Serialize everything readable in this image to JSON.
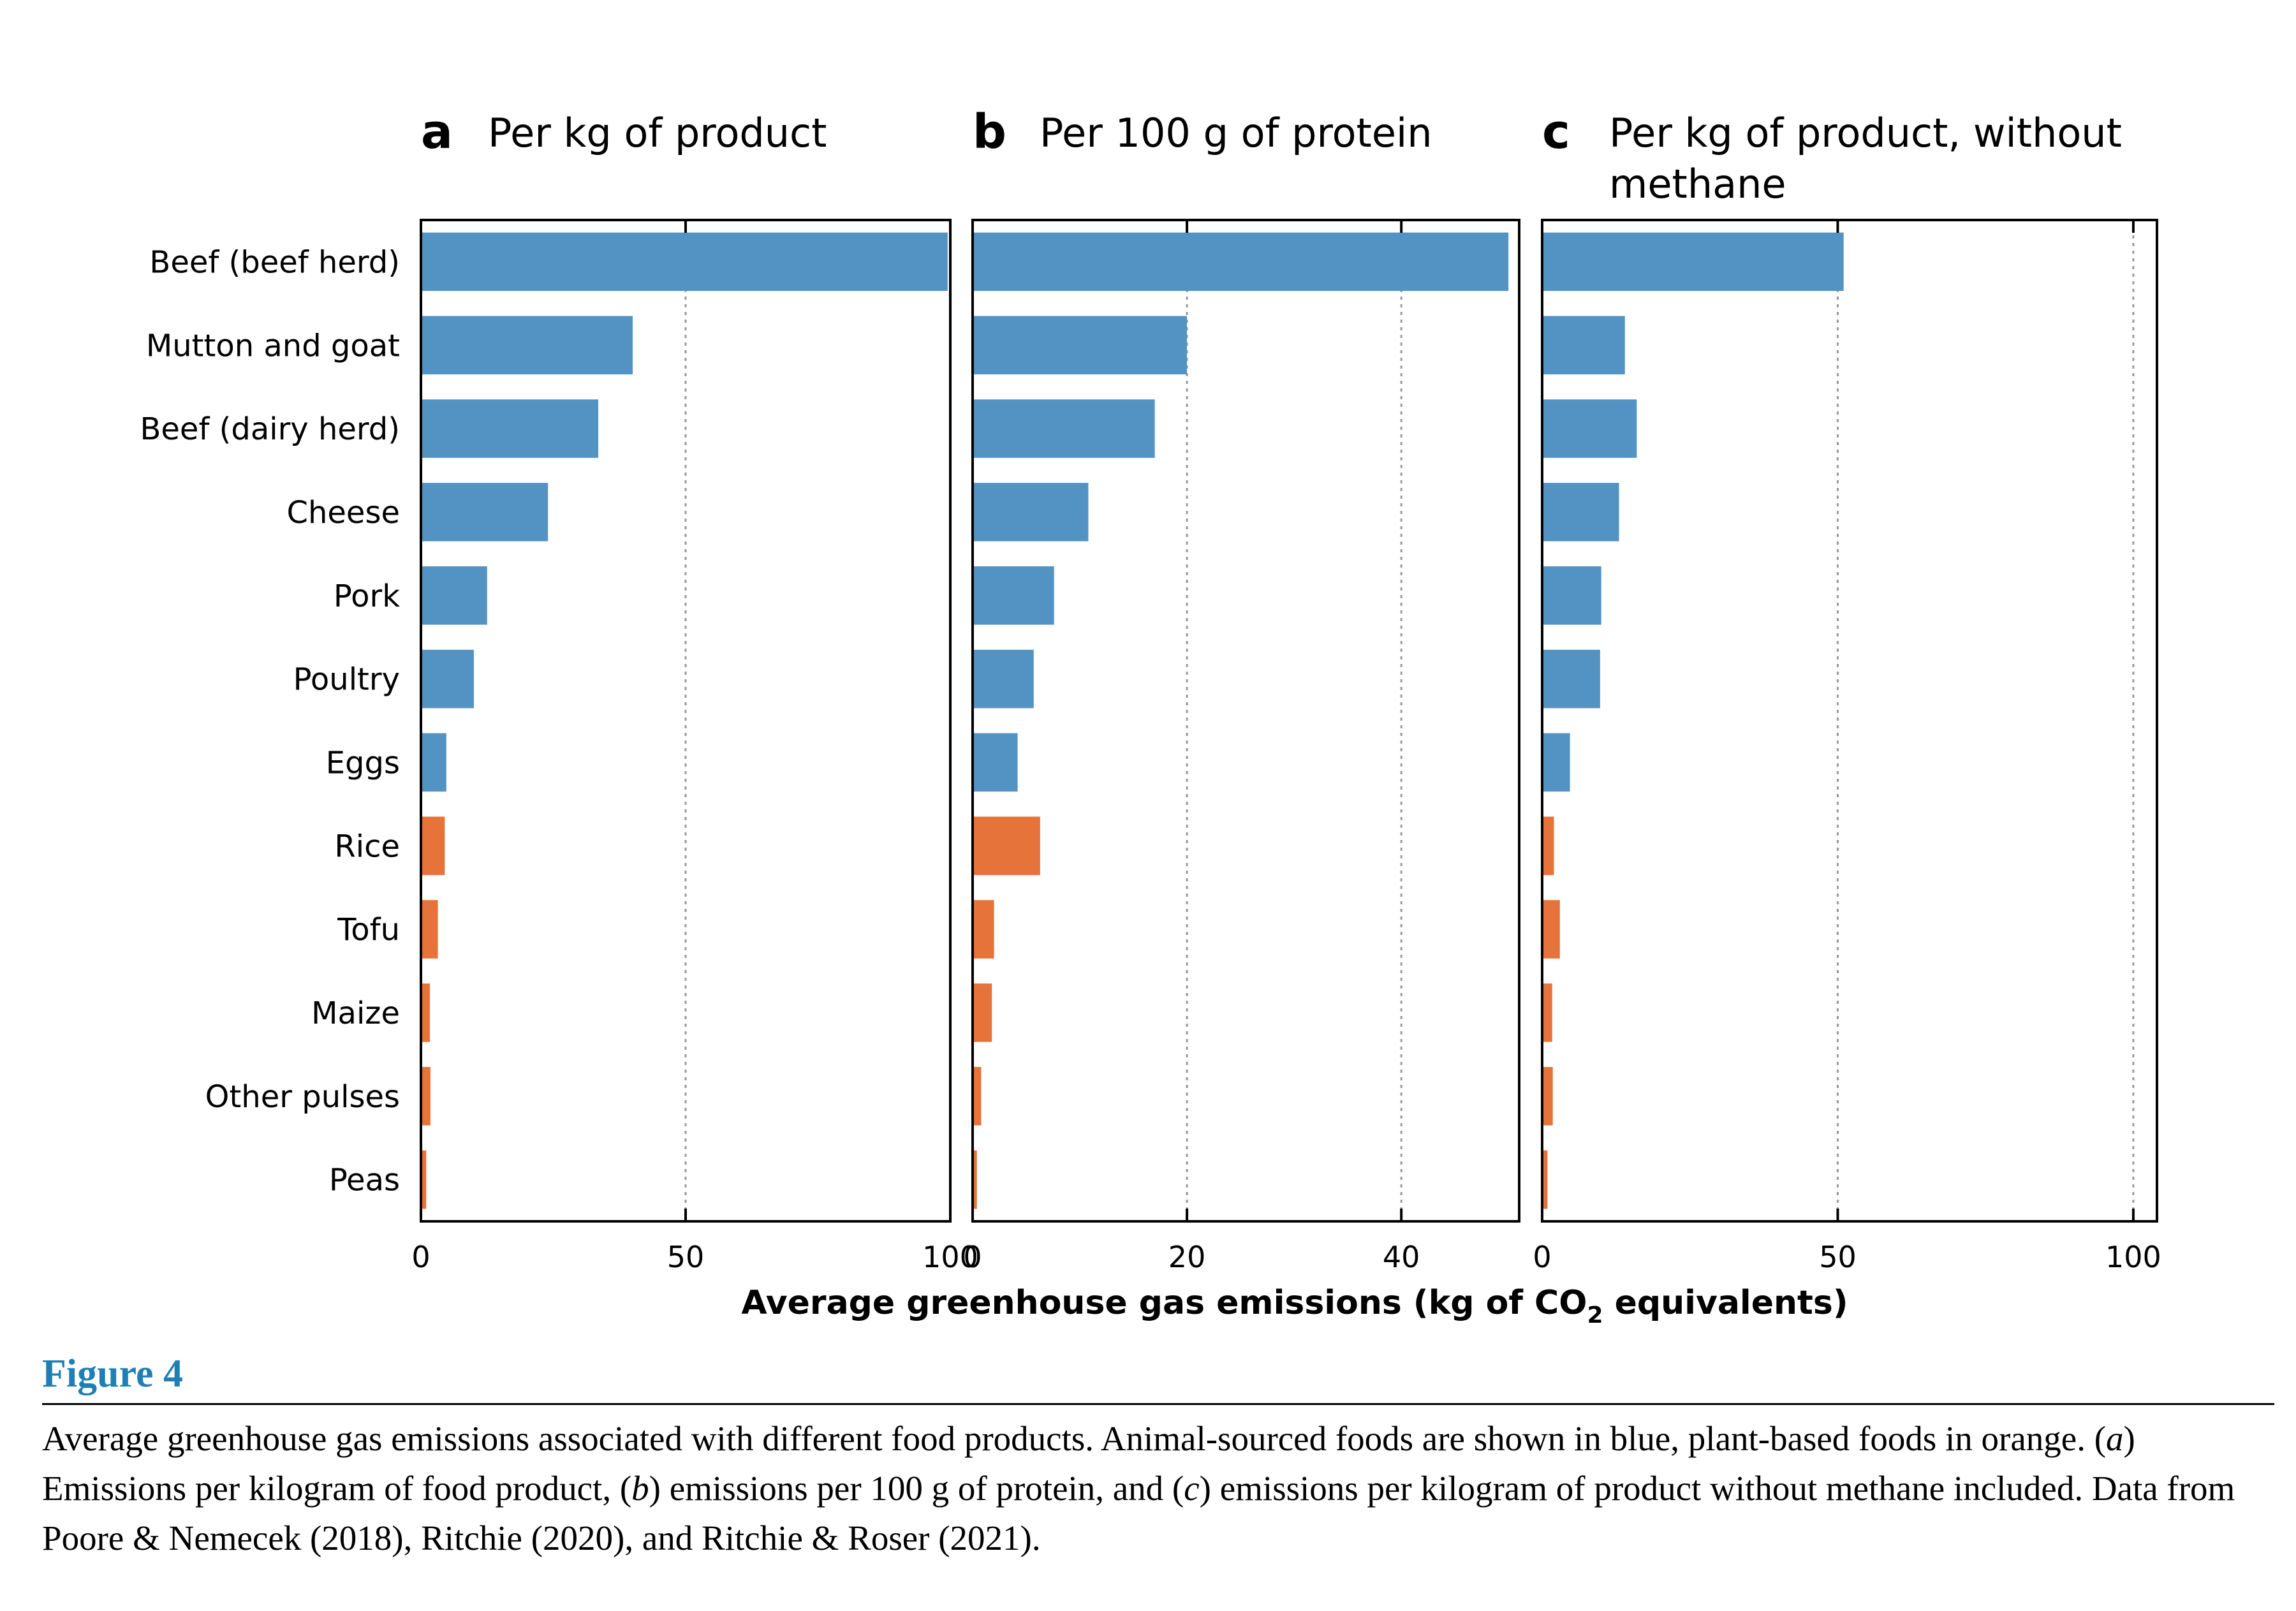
{
  "chart_data": {
    "type": "bar",
    "orientation": "horizontal",
    "categories": [
      "Beef (beef herd)",
      "Mutton and goat",
      "Beef (dairy herd)",
      "Cheese",
      "Pork",
      "Poultry",
      "Eggs",
      "Rice",
      "Tofu",
      "Maize",
      "Other pulses",
      "Peas"
    ],
    "category_group": [
      "animal",
      "animal",
      "animal",
      "animal",
      "animal",
      "animal",
      "animal",
      "plant",
      "plant",
      "plant",
      "plant",
      "plant"
    ],
    "colors": {
      "animal": "#5393c3",
      "plant": "#e6733a"
    },
    "xlabel_pre": "Average greenhouse gas emissions (kg of CO",
    "xlabel_sub": "2",
    "xlabel_post": " equivalents)",
    "grid": "vertical dotted",
    "panels": [
      {
        "letter": "a",
        "title_lines": [
          "Per kg of product"
        ],
        "xlim": [
          0,
          100
        ],
        "ticks": [
          0,
          50,
          100
        ],
        "values": [
          99.5,
          40,
          33.5,
          24,
          12.5,
          10,
          4.8,
          4.5,
          3.2,
          1.7,
          1.8,
          1
        ]
      },
      {
        "letter": "b",
        "title_lines": [
          "Per 100 g of protein"
        ],
        "xlim": [
          0,
          51
        ],
        "ticks": [
          0,
          20,
          40
        ],
        "values": [
          50,
          20,
          17,
          10.8,
          7.6,
          5.7,
          4.2,
          6.3,
          2,
          1.8,
          0.8,
          0.4
        ]
      },
      {
        "letter": "c",
        "title_lines": [
          "Per kg of product, without",
          "methane"
        ],
        "xlim": [
          0,
          104
        ],
        "ticks": [
          0,
          50,
          100
        ],
        "values": [
          51,
          14,
          16,
          13,
          10,
          9.8,
          4.7,
          2,
          3,
          1.7,
          1.8,
          0.9
        ]
      }
    ]
  },
  "caption": {
    "label": "Figure 4",
    "text_1": "Average greenhouse gas emissions associated with different food products. Animal-sourced foods are shown in blue, plant-based foods in orange. (",
    "a": "a",
    "text_2": ") Emissions per kilogram of food product, (",
    "b": "b",
    "text_3": ") emissions per 100 g of protein, and (",
    "c": "c",
    "text_4": ") emissions per kilogram of product without methane included. Data from Poore & Nemecek (2018), Ritchie (2020), and Ritchie & Roser (2021)."
  }
}
